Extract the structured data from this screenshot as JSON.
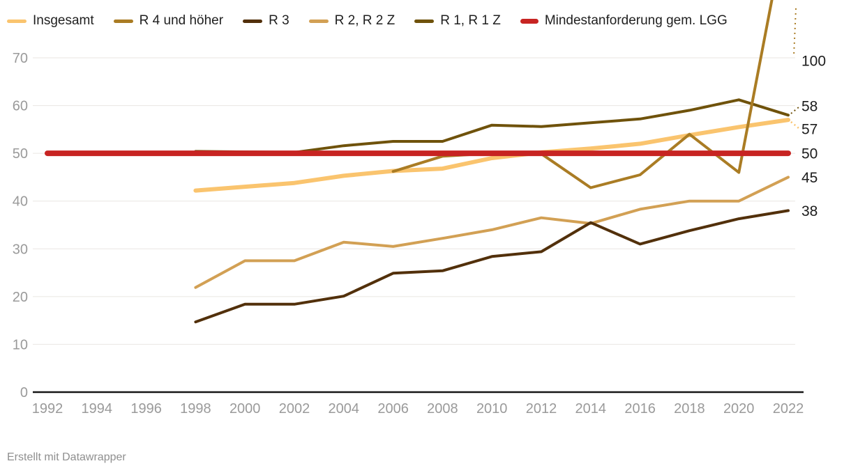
{
  "chart_data": {
    "type": "line",
    "title": "",
    "xlabel": "",
    "ylabel": "",
    "xlim": [
      1992,
      2022
    ],
    "ylim": [
      0,
      72
    ],
    "grid": true,
    "legend_position": "top",
    "x_ticks": [
      1992,
      1994,
      1996,
      1998,
      2000,
      2002,
      2004,
      2006,
      2008,
      2010,
      2012,
      2014,
      2016,
      2018,
      2020,
      2022
    ],
    "y_ticks": [
      0,
      10,
      20,
      30,
      40,
      50,
      60,
      70
    ],
    "series": [
      {
        "name": "Insgesamt",
        "color": "#fac46e",
        "line_width": 6,
        "x": [
          1998,
          2000,
          2002,
          2004,
          2006,
          2008,
          2010,
          2012,
          2014,
          2016,
          2018,
          2020,
          2022
        ],
        "values": [
          42.2,
          43.0,
          43.8,
          45.3,
          46.3,
          46.8,
          49.0,
          50.2,
          51.0,
          52.0,
          53.8,
          55.5,
          57
        ],
        "end_label": "57"
      },
      {
        "name": "R 4 und höher",
        "color": "#aa7c24",
        "line_width": 4,
        "x": [
          2006,
          2008,
          2010,
          2012,
          2014,
          2016,
          2018,
          2020,
          2022
        ],
        "values": [
          46.2,
          49.4,
          50.0,
          49.9,
          42.8,
          45.5,
          54.0,
          46.0,
          100
        ],
        "end_label": "100",
        "out_of_range_end": true
      },
      {
        "name": "R 3",
        "color": "#52300b",
        "line_width": 4,
        "x": [
          1998,
          2000,
          2002,
          2004,
          2006,
          2008,
          2010,
          2012,
          2014,
          2016,
          2018,
          2020,
          2022
        ],
        "values": [
          14.7,
          18.4,
          18.4,
          20.1,
          24.9,
          25.4,
          28.4,
          29.4,
          35.5,
          31.0,
          33.8,
          36.3,
          38
        ],
        "end_label": "38"
      },
      {
        "name": "R 2, R 2 Z",
        "color": "#d2a054",
        "line_width": 4,
        "x": [
          1998,
          2000,
          2002,
          2004,
          2006,
          2008,
          2010,
          2012,
          2014,
          2016,
          2018,
          2020,
          2022
        ],
        "values": [
          21.9,
          27.5,
          27.5,
          31.4,
          30.5,
          32.2,
          34.0,
          36.5,
          35.3,
          38.3,
          40.0,
          40.0,
          45
        ],
        "end_label": "45"
      },
      {
        "name": "R 1, R 1 Z",
        "color": "#6f520b",
        "line_width": 4,
        "x": [
          1998,
          2000,
          2002,
          2004,
          2006,
          2008,
          2010,
          2012,
          2014,
          2016,
          2018,
          2020,
          2022
        ],
        "values": [
          50.4,
          50.3,
          50.2,
          51.6,
          52.5,
          52.5,
          55.9,
          55.6,
          56.4,
          57.2,
          59.0,
          61.2,
          58
        ],
        "end_label": "58"
      },
      {
        "name": "Mindestanforderung gem. LGG",
        "color": "#c72422",
        "line_width": 8,
        "x": [
          1992,
          2022
        ],
        "values": [
          50,
          50
        ],
        "end_label": "50"
      }
    ]
  },
  "footer": {
    "credit": "Erstellt mit Datawrapper"
  }
}
